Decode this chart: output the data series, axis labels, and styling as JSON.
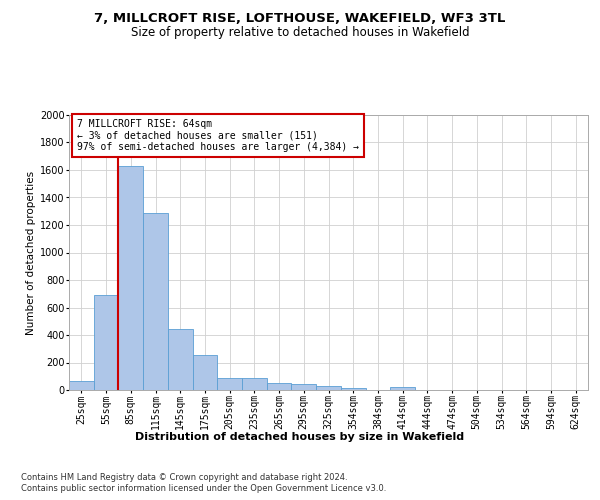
{
  "title_line1": "7, MILLCROFT RISE, LOFTHOUSE, WAKEFIELD, WF3 3TL",
  "title_line2": "Size of property relative to detached houses in Wakefield",
  "xlabel": "Distribution of detached houses by size in Wakefield",
  "ylabel": "Number of detached properties",
  "footer_line1": "Contains HM Land Registry data © Crown copyright and database right 2024.",
  "footer_line2": "Contains public sector information licensed under the Open Government Licence v3.0.",
  "annotation_line1": "7 MILLCROFT RISE: 64sqm",
  "annotation_line2": "← 3% of detached houses are smaller (151)",
  "annotation_line3": "97% of semi-detached houses are larger (4,384) →",
  "bar_color": "#aec6e8",
  "bar_edge_color": "#5a9fd4",
  "vline_color": "#cc0000",
  "vline_x": 1.5,
  "categories": [
    "25sqm",
    "55sqm",
    "85sqm",
    "115sqm",
    "145sqm",
    "175sqm",
    "205sqm",
    "235sqm",
    "265sqm",
    "295sqm",
    "325sqm",
    "354sqm",
    "384sqm",
    "414sqm",
    "444sqm",
    "474sqm",
    "504sqm",
    "534sqm",
    "564sqm",
    "594sqm",
    "624sqm"
  ],
  "values": [
    65,
    690,
    1630,
    1285,
    445,
    255,
    85,
    85,
    50,
    42,
    28,
    15,
    0,
    20,
    0,
    0,
    0,
    0,
    0,
    0,
    0
  ],
  "ylim": [
    0,
    2000
  ],
  "yticks": [
    0,
    200,
    400,
    600,
    800,
    1000,
    1200,
    1400,
    1600,
    1800,
    2000
  ],
  "background_color": "#ffffff",
  "grid_color": "#d0d0d0",
  "title1_fontsize": 9.5,
  "title2_fontsize": 8.5,
  "ylabel_fontsize": 7.5,
  "xlabel_fontsize": 8,
  "tick_fontsize": 7,
  "ann_fontsize": 7,
  "footer_fontsize": 6
}
